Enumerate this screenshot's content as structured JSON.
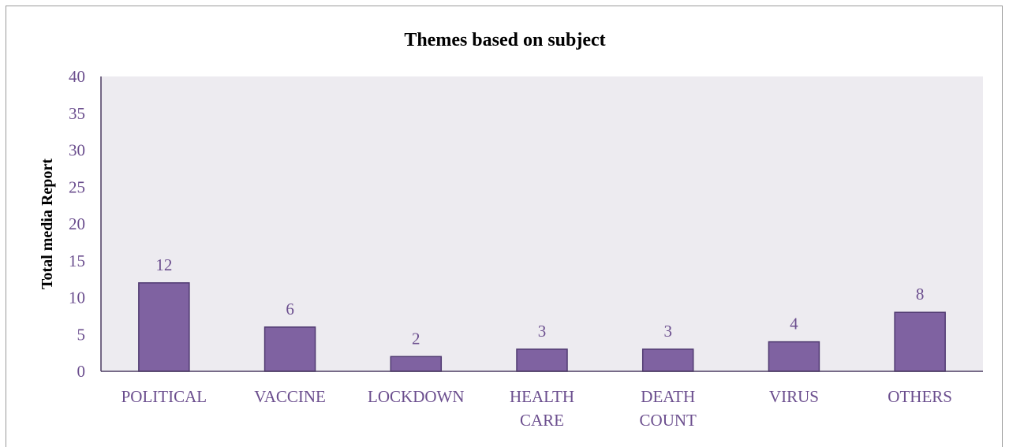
{
  "chart_data": {
    "type": "bar",
    "title": "Themes based on subject",
    "xlabel": "",
    "ylabel": "Total media Report",
    "categories": [
      [
        "POLITICAL"
      ],
      [
        "VACCINE"
      ],
      [
        "LOCKDOWN"
      ],
      [
        "HEALTH",
        "CARE"
      ],
      [
        "DEATH",
        "COUNT"
      ],
      [
        "VIRUS"
      ],
      [
        "OTHERS"
      ]
    ],
    "values": [
      12,
      6,
      2,
      3,
      3,
      4,
      8
    ],
    "ylim": [
      0,
      40
    ],
    "yticks": [
      "0",
      "5",
      "10",
      "15",
      "20",
      "25",
      "30",
      "35",
      "40"
    ],
    "bar_color": "#7f62a1",
    "bar_edge_color": "#4f3970",
    "plot_background": "#edebf0",
    "text_color": "#6b4e8e",
    "grid": false,
    "data_labels": true
  }
}
